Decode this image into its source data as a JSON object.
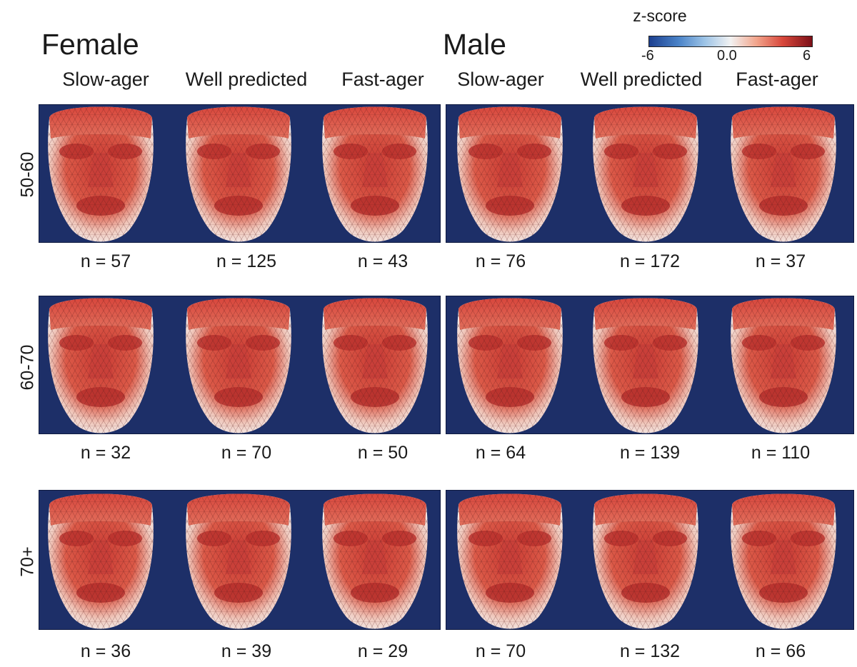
{
  "sexes": [
    {
      "name": "Female",
      "columns": [
        "Slow-ager",
        "Well predicted",
        "Fast-ager"
      ]
    },
    {
      "name": "Male",
      "columns": [
        "Slow-ager",
        "Well predicted",
        "Fast-ager"
      ]
    }
  ],
  "colorbar": {
    "title": "z-score",
    "ticks": [
      "-6",
      "0.0",
      "6"
    ],
    "min": -6,
    "max": 6
  },
  "rows": [
    {
      "age": "50-60",
      "counts": [
        "n = 57",
        "n = 125",
        "n = 43",
        "n = 76",
        "n = 172",
        "n = 37"
      ]
    },
    {
      "age": "60-70",
      "counts": [
        "n = 32",
        "n = 70",
        "n = 50",
        "n = 64",
        "n = 139",
        "n = 110"
      ]
    },
    {
      "age": "70+",
      "counts": [
        "n = 36",
        "n = 39",
        "n = 29",
        "n = 70",
        "n = 132",
        "n = 66"
      ]
    }
  ],
  "colors": {
    "panel_bg": "#1d2f68",
    "face_high": "#d8473b",
    "face_mid": "#f2f2f2",
    "face_low": "#b9d5ee"
  }
}
